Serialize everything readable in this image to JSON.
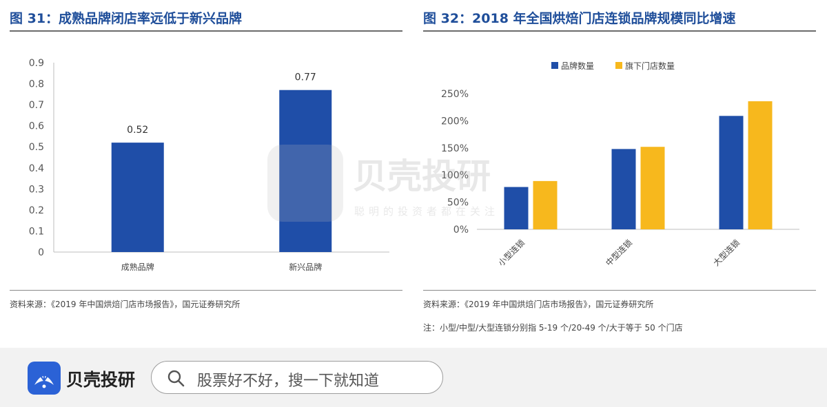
{
  "left": {
    "title": "图 31：成熟品牌闭店率远低于新兴品牌",
    "source": "资料来源：《2019 年中国烘焙门店市场报告》，国元证券研究所"
  },
  "right": {
    "title": "图 32：2018 年全国烘焙门店连锁品牌规模同比增速",
    "source": "资料来源：《2019 年中国烘焙门店市场报告》，国元证券研究所",
    "note": "注：小型/中型/大型连锁分别指 5-19 个/20-49 个/大于等于 50 个门店"
  },
  "watermark": {
    "brand": "贝壳投研",
    "slogan": "聪明的投资者都在关注"
  },
  "footer": {
    "brand": "贝壳投研",
    "search_placeholder": "股票好不好，搜一下就知道"
  },
  "colors": {
    "title": "#1f4e9a",
    "bar_blue": "#1f4ea8",
    "bar_yellow": "#f7b81d",
    "brand_blue": "#2b62d6"
  },
  "chart_data": [
    {
      "type": "bar",
      "categories": [
        "成熟品牌",
        "新兴品牌"
      ],
      "values": [
        0.52,
        0.77
      ],
      "data_labels": [
        "0.52",
        "0.77"
      ],
      "ylim": [
        0,
        0.9
      ],
      "yticks": [
        "0",
        "0.1",
        "0.2",
        "0.3",
        "0.4",
        "0.5",
        "0.6",
        "0.7",
        "0.8",
        "0.9"
      ],
      "grid": false,
      "legend": "none"
    },
    {
      "type": "bar",
      "categories": [
        "小型连锁",
        "中型连锁",
        "大型连锁"
      ],
      "series": [
        {
          "name": "品牌数量",
          "values": [
            78,
            148,
            209
          ]
        },
        {
          "name": "旗下门店数量",
          "values": [
            89,
            152,
            236
          ]
        }
      ],
      "ylim": [
        0,
        250
      ],
      "yticks": [
        "0%",
        "50%",
        "100%",
        "150%",
        "200%",
        "250%"
      ],
      "grid": false,
      "legend": "top"
    }
  ]
}
